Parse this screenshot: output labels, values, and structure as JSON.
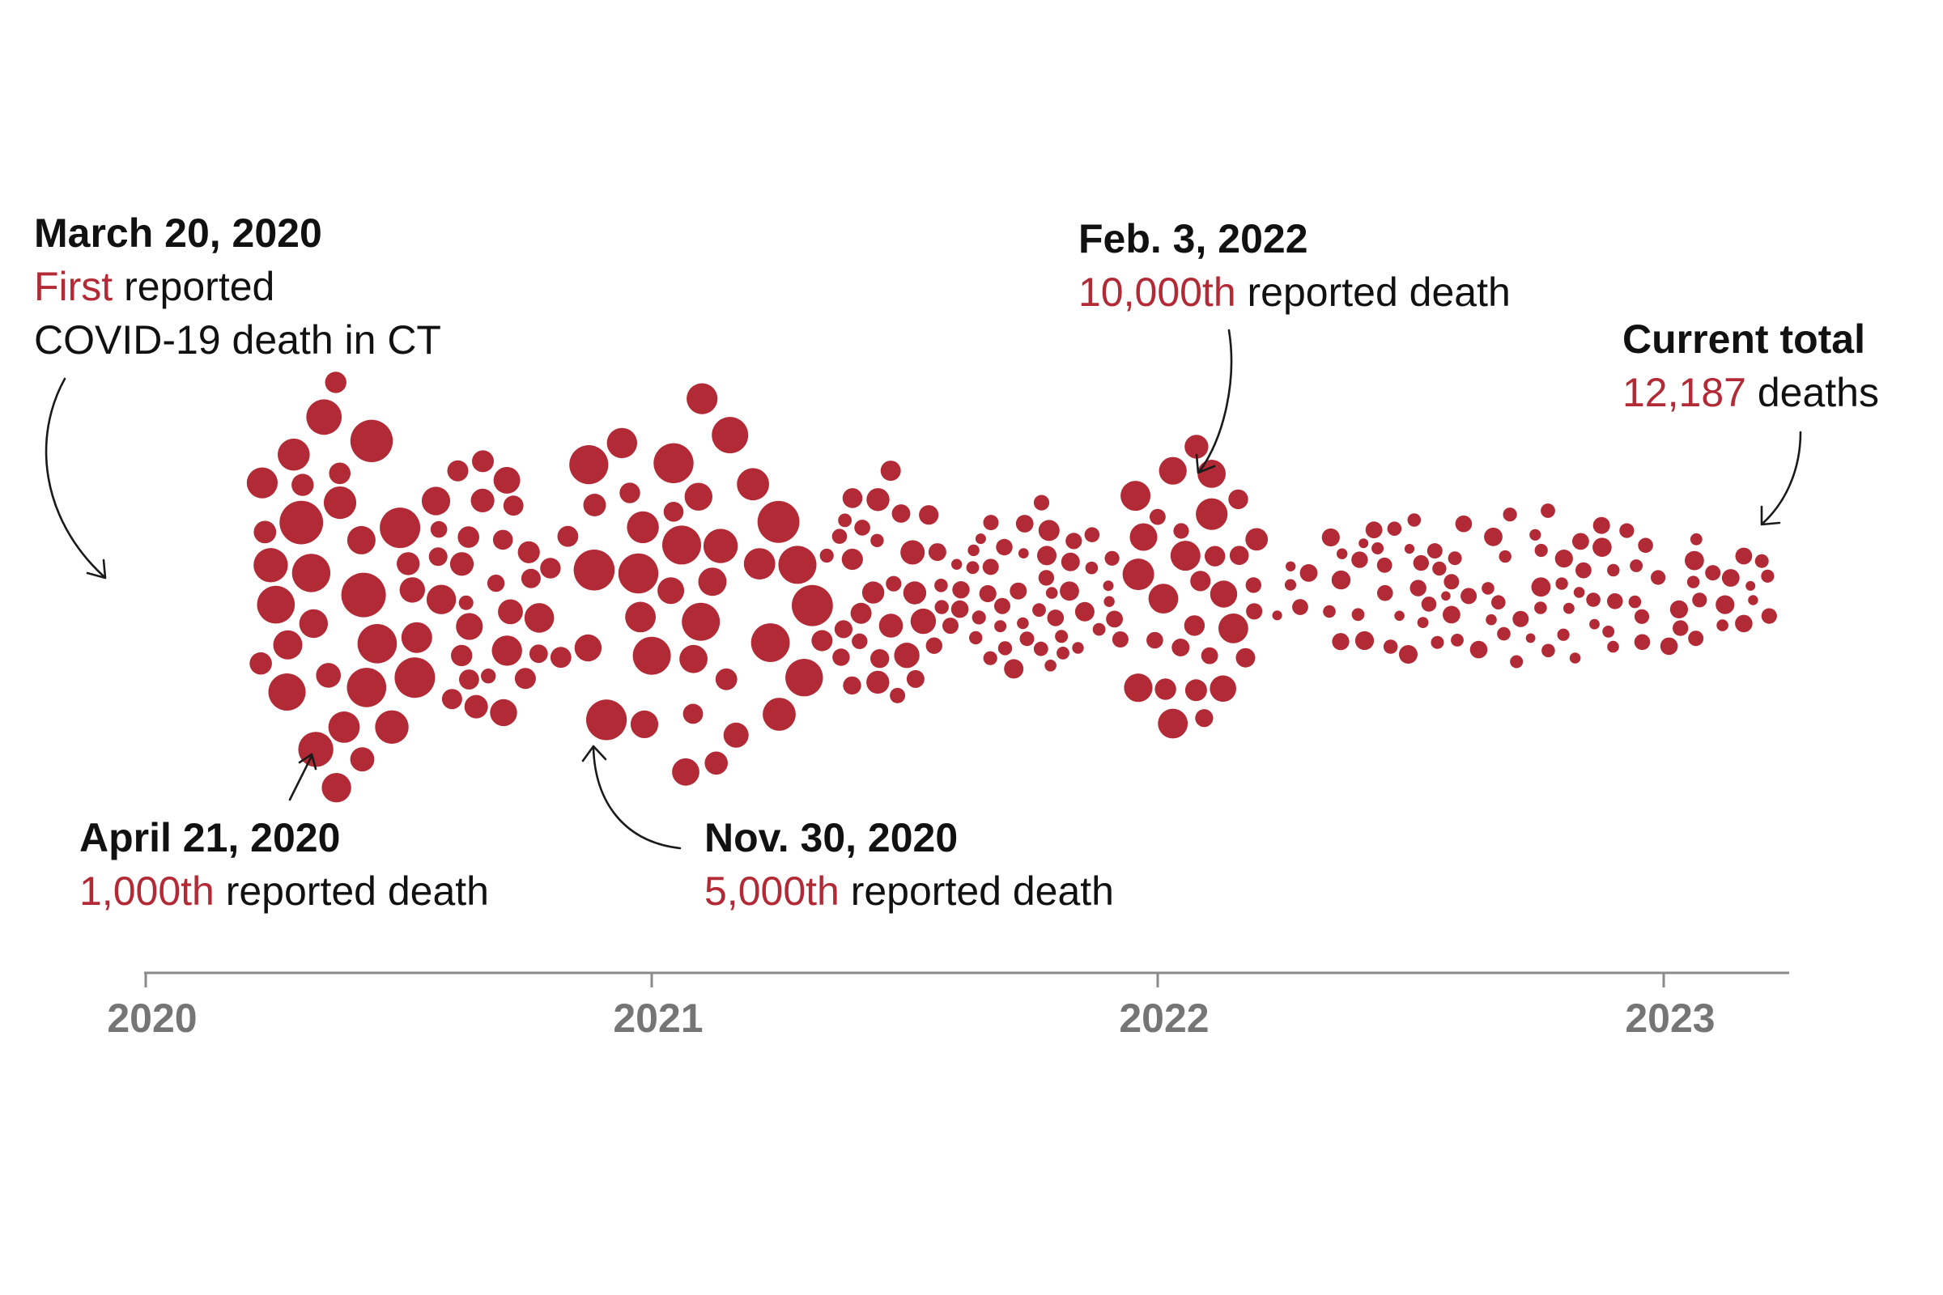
{
  "chart_data": {
    "type": "bubble-timeline",
    "title": "",
    "x_axis": {
      "ticks": [
        "2020",
        "2021",
        "2022",
        "2023"
      ],
      "range": [
        "2020-01-01",
        "2023-03-31"
      ]
    },
    "colors": {
      "dots": "#b22a35",
      "highlight": "#b22a35",
      "text": "#111111",
      "axis": "#8a8a8a",
      "tick_label": "#757575"
    },
    "series": [
      {
        "name": "",
        "date_range": [
          "2020-03-20",
          "2020-07-15"
        ],
        "relative_density": 1.0
      },
      {
        "name": "",
        "date_range": [
          "2020-07-15",
          "2020-10-20"
        ],
        "relative_density": 0.55
      },
      {
        "name": "",
        "date_range": [
          "2020-10-20",
          "2021-05-01"
        ],
        "relative_density": 0.9
      },
      {
        "name": "",
        "date_range": [
          "2021-05-01",
          "2021-08-01"
        ],
        "relative_density": 0.45
      },
      {
        "name": "",
        "date_range": [
          "2021-08-01",
          "2021-12-01"
        ],
        "relative_density": 0.25
      },
      {
        "name": "",
        "date_range": [
          "2021-12-01",
          "2022-03-15"
        ],
        "relative_density": 0.6
      },
      {
        "name": "",
        "date_range": [
          "2022-03-15",
          "2023-03-20"
        ],
        "relative_density": 0.2
      }
    ],
    "annotations": [
      {
        "date_label": "March 20, 2020",
        "highlight": "First",
        "rest": " reported",
        "line3": "COVID-19 death in CT"
      },
      {
        "date_label": "April 21, 2020",
        "highlight": "1,000th",
        "rest": " reported death"
      },
      {
        "date_label": "Nov. 30, 2020",
        "highlight": "5,000th",
        "rest": " reported death"
      },
      {
        "date_label": "Feb. 3, 2022",
        "highlight": "10,000th",
        "rest": " reported death"
      },
      {
        "date_label": "Current total",
        "highlight": "12,187",
        "rest": " deaths"
      }
    ]
  }
}
